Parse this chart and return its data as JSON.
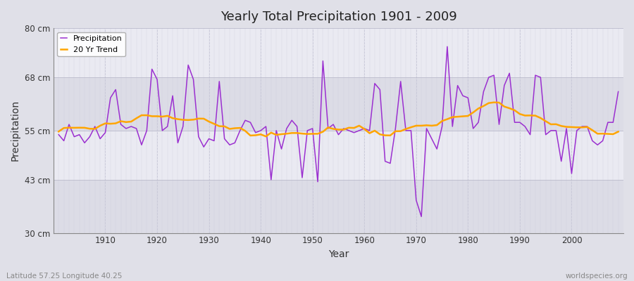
{
  "title": "Yearly Total Precipitation 1901 - 2009",
  "ylabel": "Precipitation",
  "xlabel": "Year",
  "lat_lon_label": "Latitude 57.25 Longitude 40.25",
  "source_label": "worldspecies.org",
  "start_year": 1901,
  "end_year": 2009,
  "ylim": [
    30,
    80
  ],
  "yticks": [
    30,
    43,
    55,
    68,
    80
  ],
  "ytick_labels": [
    "30 cm",
    "43 cm",
    "55 cm",
    "68 cm",
    "80 cm"
  ],
  "precip_color": "#9B30D0",
  "trend_color": "#FFA500",
  "bg_color": "#E0E0E8",
  "plot_bg_color": "#E8E8F0",
  "band_color_light": "#EAEAF2",
  "band_color_dark": "#DCDCE6",
  "grid_color": "#C8C8D8",
  "precip_linewidth": 1.1,
  "trend_linewidth": 1.8,
  "precipitation": [
    54.0,
    52.5,
    56.5,
    53.5,
    54.0,
    52.0,
    53.5,
    56.0,
    53.0,
    54.5,
    63.0,
    65.0,
    56.5,
    55.5,
    56.0,
    55.5,
    51.5,
    55.0,
    70.0,
    67.5,
    55.0,
    56.0,
    63.5,
    52.0,
    56.0,
    71.0,
    67.5,
    53.5,
    51.0,
    53.0,
    52.5,
    67.0,
    53.0,
    51.5,
    52.0,
    55.0,
    57.5,
    57.0,
    54.5,
    55.0,
    56.0,
    43.0,
    55.0,
    50.5,
    55.5,
    57.5,
    56.0,
    43.5,
    55.0,
    55.5,
    42.5,
    72.0,
    55.5,
    56.5,
    54.0,
    55.5,
    55.0,
    54.5,
    55.0,
    55.5,
    55.0,
    66.5,
    65.0,
    47.5,
    47.0,
    55.5,
    67.0,
    55.0,
    55.0,
    38.0,
    34.0,
    55.5,
    53.0,
    50.5,
    56.0,
    75.5,
    56.0,
    66.0,
    63.5,
    63.0,
    55.5,
    57.0,
    64.5,
    68.0,
    68.5,
    56.5,
    66.0,
    69.0,
    57.0,
    57.0,
    56.0,
    54.0,
    68.5,
    68.0,
    54.0,
    55.0,
    55.0,
    47.5,
    55.5,
    44.5,
    55.0,
    56.0,
    56.0,
    52.5,
    51.5,
    52.5,
    57.0,
    57.0,
    64.5
  ]
}
